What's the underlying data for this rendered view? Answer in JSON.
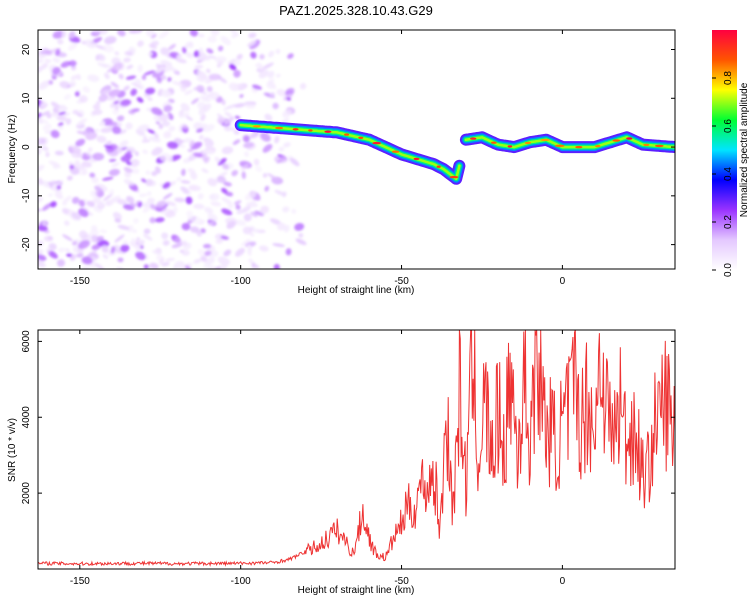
{
  "title": "PAZ1.2025.328.10.43.G29",
  "chart_data": [
    {
      "type": "heatmap",
      "title": "PAZ1.2025.328.10.43.G29",
      "xlabel": "Height of straight line (km)",
      "ylabel": "Frequency (Hz)",
      "xlim": [
        -163,
        35
      ],
      "ylim": [
        -25,
        24
      ],
      "xticks": [
        -150,
        -100,
        -50,
        0
      ],
      "yticks": [
        -20,
        -10,
        0,
        10,
        20
      ],
      "colorbar": {
        "label": "Normalized spectral amplitude",
        "range": [
          0,
          1
        ],
        "ticks": [
          "0.0",
          "0.2",
          "0.4",
          "0.6",
          "0.8"
        ],
        "colors": [
          "#ffffff",
          "#e4c8ff",
          "#9a33ff",
          "#0000ff",
          "#00e5ff",
          "#00ff33",
          "#ffff00",
          "#ff5500",
          "#ff0040"
        ]
      },
      "noise_region_x": [
        -163,
        -80
      ],
      "ridge": [
        {
          "x": -100,
          "f": 4.5
        },
        {
          "x": -90,
          "f": 4.0
        },
        {
          "x": -80,
          "f": 3.5
        },
        {
          "x": -70,
          "f": 3.0
        },
        {
          "x": -60,
          "f": 1.5
        },
        {
          "x": -55,
          "f": 0.0
        },
        {
          "x": -50,
          "f": -1.5
        },
        {
          "x": -45,
          "f": -2.5
        },
        {
          "x": -40,
          "f": -3.5
        },
        {
          "x": -37,
          "f": -4.5
        },
        {
          "x": -33,
          "f": -6.5
        },
        {
          "x": -30,
          "f": 1.5
        },
        {
          "x": -25,
          "f": 2.0
        },
        {
          "x": -20,
          "f": 0.5
        },
        {
          "x": -15,
          "f": 0.0
        },
        {
          "x": -10,
          "f": 1.0
        },
        {
          "x": -5,
          "f": 1.5
        },
        {
          "x": 0,
          "f": 0.0
        },
        {
          "x": 10,
          "f": 0.0
        },
        {
          "x": 15,
          "f": 1.0
        },
        {
          "x": 20,
          "f": 2.0
        },
        {
          "x": 25,
          "f": 0.5
        },
        {
          "x": 35,
          "f": 0.0
        }
      ]
    },
    {
      "type": "line",
      "xlabel": "Height of straight line (km)",
      "ylabel": "SNR (10 * v/v)",
      "xlim": [
        -163,
        35
      ],
      "ylim": [
        0,
        6300
      ],
      "xticks": [
        -150,
        -100,
        -50,
        0
      ],
      "yticks": [
        2000,
        4000,
        6000
      ],
      "color": "#ee3333",
      "series": [
        {
          "name": "SNR",
          "x": [
            -163,
            -150,
            -140,
            -130,
            -120,
            -110,
            -100,
            -90,
            -85,
            -80,
            -75,
            -72,
            -70,
            -68,
            -65,
            -62,
            -60,
            -58,
            -55,
            -52,
            -50,
            -48,
            -46,
            -44,
            -42,
            -40,
            -38,
            -36,
            -34,
            -32,
            -30,
            -28,
            -26,
            -24,
            -22,
            -20,
            -18,
            -16,
            -14,
            -12,
            -10,
            -8,
            -6,
            -4,
            -2,
            0,
            2,
            4,
            6,
            8,
            10,
            12,
            14,
            16,
            18,
            20,
            22,
            24,
            26,
            28,
            30,
            32,
            35
          ],
          "y": [
            150,
            140,
            145,
            150,
            140,
            145,
            150,
            170,
            250,
            450,
            650,
            900,
            1000,
            800,
            400,
            1500,
            800,
            400,
            300,
            900,
            1200,
            1700,
            1500,
            2300,
            2100,
            2600,
            1000,
            4200,
            1500,
            4700,
            2200,
            5500,
            3000,
            4500,
            2800,
            4100,
            3200,
            5200,
            3000,
            4900,
            3400,
            6300,
            4000,
            3700,
            3300,
            3700,
            4200,
            4900,
            3800,
            4600,
            3500,
            5900,
            4100,
            3500,
            4400,
            3300,
            3800,
            3000,
            2300,
            3500,
            4000,
            4500,
            3500
          ]
        }
      ]
    }
  ]
}
